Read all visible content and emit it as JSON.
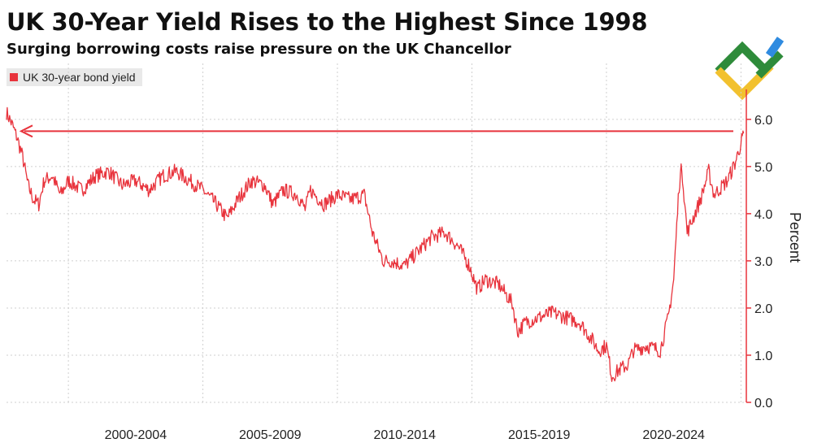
{
  "title": "UK 30-Year Yield Rises to the Highest Since 1998",
  "subtitle": "Surging borrowing costs raise pressure on the UK Chancellor",
  "colors": {
    "series": "#e8333c",
    "grid": "#cfcfcf",
    "axis": "#e8333c",
    "text": "#111111",
    "logo_green": "#2e8b3a",
    "logo_yellow": "#f2c12e",
    "logo_blue": "#2f8be0"
  },
  "chart_data": {
    "type": "line",
    "title": "UK 30-Year Yield Rises to the Highest Since 1998",
    "subtitle": "Surging borrowing costs raise pressure on the UK Chancellor",
    "legend": {
      "position": "top-left",
      "entries": [
        "UK 30-year bond yield"
      ]
    },
    "xlabel": "",
    "ylabel": "Percent",
    "x_range": [
      1997.7,
      2025.2
    ],
    "ylim": [
      0,
      6.6
    ],
    "y_ticks": [
      0.0,
      1.0,
      2.0,
      3.0,
      4.0,
      5.0,
      6.0
    ],
    "y_tick_labels": [
      "0.0",
      "1.0",
      "2.0",
      "3.0",
      "4.0",
      "5.0",
      "6.0"
    ],
    "x_tick_labels": [
      "2000-2004",
      "2005-2009",
      "2010-2014",
      "2015-2019",
      "2020-2024"
    ],
    "grid": true,
    "y_axis_side": "right",
    "reference_line": {
      "value": 5.75,
      "style": "arrow-left"
    },
    "series": [
      {
        "name": "UK 30-year bond yield",
        "x": [
          1997.7,
          1997.9,
          1998.1,
          1998.3,
          1998.5,
          1998.7,
          1998.9,
          1999.1,
          1999.4,
          1999.7,
          2000.0,
          2000.5,
          2001.0,
          2001.5,
          2002.0,
          2002.5,
          2003.0,
          2003.5,
          2004.0,
          2004.5,
          2005.0,
          2005.5,
          2005.9,
          2006.3,
          2006.8,
          2007.3,
          2007.6,
          2008.0,
          2008.5,
          2008.8,
          2009.0,
          2009.5,
          2010.0,
          2010.5,
          2011.0,
          2011.3,
          2011.7,
          2012.0,
          2012.5,
          2013.0,
          2013.5,
          2014.0,
          2014.5,
          2014.9,
          2015.2,
          2015.5,
          2016.0,
          2016.5,
          2016.7,
          2017.0,
          2017.5,
          2018.0,
          2018.5,
          2019.0,
          2019.5,
          2019.7,
          2020.0,
          2020.2,
          2020.5,
          2020.8,
          2021.0,
          2021.5,
          2022.0,
          2022.3,
          2022.5,
          2022.7,
          2022.8,
          2023.0,
          2023.5,
          2023.8,
          2024.0,
          2024.5,
          2024.8,
          2025.0,
          2025.1
        ],
        "values": [
          6.15,
          5.9,
          5.6,
          5.2,
          4.6,
          4.3,
          4.2,
          4.7,
          4.8,
          4.4,
          4.7,
          4.5,
          4.8,
          4.9,
          4.6,
          4.7,
          4.5,
          4.8,
          4.9,
          4.7,
          4.5,
          4.2,
          3.9,
          4.3,
          4.7,
          4.6,
          4.2,
          4.5,
          4.4,
          4.1,
          4.5,
          4.2,
          4.4,
          4.3,
          4.4,
          3.6,
          3.0,
          3.0,
          2.9,
          3.2,
          3.5,
          3.6,
          3.3,
          2.9,
          2.4,
          2.6,
          2.5,
          2.1,
          1.5,
          1.7,
          1.8,
          1.9,
          1.8,
          1.7,
          1.3,
          1.1,
          1.2,
          0.55,
          0.7,
          0.8,
          1.1,
          1.2,
          1.1,
          1.8,
          2.6,
          4.6,
          5.0,
          3.6,
          4.3,
          4.9,
          4.4,
          4.7,
          5.1,
          5.5,
          5.7
        ]
      }
    ]
  }
}
